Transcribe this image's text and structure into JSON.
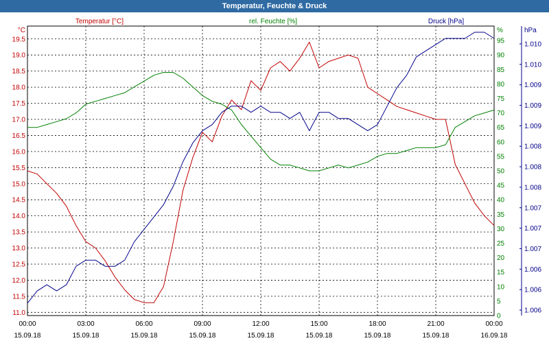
{
  "window": {
    "title": "Temperatur, Feuchte & Druck"
  },
  "colors": {
    "temp": "#c00000",
    "hum": "#008000",
    "press": "#00008b",
    "grid": "#000000"
  },
  "chart_data": {
    "type": "line",
    "title": "Temperatur, Feuchte & Druck",
    "grid": true,
    "x_ticks": [
      {
        "time": "00:00",
        "date": "15.09.18"
      },
      {
        "time": "03:00",
        "date": "15.09.18"
      },
      {
        "time": "06:00",
        "date": "15.09.18"
      },
      {
        "time": "09:00",
        "date": "15.09.18"
      },
      {
        "time": "12:00",
        "date": "15.09.18"
      },
      {
        "time": "15:00",
        "date": "15.09.18"
      },
      {
        "time": "18:00",
        "date": "15.09.18"
      },
      {
        "time": "21:00",
        "date": "15.09.18"
      },
      {
        "time": "00:00",
        "date": "16.09.18"
      }
    ],
    "x_range_hours": [
      0,
      24
    ],
    "axes": {
      "temp": {
        "label": "Temperatur [°C]",
        "unit": "°C",
        "range": [
          10.9,
          19.9
        ],
        "ticks": [
          "19.5",
          "19.0",
          "18.5",
          "18.0",
          "17.5",
          "17.0",
          "16.5",
          "16.0",
          "15.5",
          "15.0",
          "14.5",
          "14.0",
          "13.5",
          "13.0",
          "12.5",
          "12.0",
          "11.5",
          "11.0"
        ]
      },
      "hum": {
        "label": "rel. Feuchte [%]",
        "unit": "%",
        "range": [
          0,
          100
        ],
        "ticks": [
          "95",
          "90",
          "85",
          "80",
          "75",
          "70",
          "65",
          "60",
          "55",
          "50",
          "45",
          "40",
          "35",
          "30",
          "25",
          "20",
          "15",
          "10",
          "5",
          "0"
        ]
      },
      "press": {
        "label": "Druck [hPa]",
        "unit": "hPa",
        "range": [
          1.0058,
          1.0105
        ],
        "ticks": [
          "1.010",
          "1.010",
          "1.009",
          "1.009",
          "1.009",
          "1.008",
          "1.008",
          "1.008",
          "1.007",
          "1.007",
          "1.007",
          "1.006",
          "1.006",
          "1.006"
        ]
      }
    },
    "series": [
      {
        "name": "Temperatur [°C]",
        "axis": "temp",
        "color": "#c00000",
        "x": [
          0,
          0.5,
          1,
          1.5,
          2,
          2.5,
          3,
          3.5,
          4,
          4.5,
          5,
          5.5,
          6,
          6.5,
          7,
          7.5,
          8,
          8.5,
          9,
          9.5,
          10,
          10.5,
          11,
          11.5,
          12,
          12.5,
          13,
          13.5,
          14,
          14.5,
          15,
          15.5,
          16,
          16.5,
          17,
          17.5,
          18,
          18.5,
          19,
          19.5,
          20,
          20.5,
          21,
          21.5,
          22,
          22.5,
          23,
          23.5,
          24
        ],
        "y": [
          15.4,
          15.3,
          15.0,
          14.7,
          14.3,
          13.7,
          13.2,
          13.0,
          12.6,
          12.1,
          11.7,
          11.4,
          11.3,
          11.3,
          11.8,
          13.2,
          14.8,
          15.8,
          16.6,
          16.3,
          17.1,
          17.6,
          17.3,
          18.2,
          17.9,
          18.6,
          18.8,
          18.5,
          18.9,
          19.4,
          18.6,
          18.8,
          18.9,
          19.0,
          18.9,
          18.0,
          17.8,
          17.6,
          17.4,
          17.3,
          17.2,
          17.1,
          17.0,
          17.0,
          15.6,
          15.0,
          14.4,
          14.0,
          13.7
        ]
      },
      {
        "name": "rel. Feuchte [%]",
        "axis": "hum",
        "color": "#008000",
        "x": [
          0,
          0.5,
          1,
          1.5,
          2,
          2.5,
          3,
          3.5,
          4,
          4.5,
          5,
          5.5,
          6,
          6.5,
          7,
          7.5,
          8,
          8.5,
          9,
          9.5,
          10,
          10.5,
          11,
          11.5,
          12,
          12.5,
          13,
          13.5,
          14,
          14.5,
          15,
          15.5,
          16,
          16.5,
          17,
          17.5,
          18,
          18.5,
          19,
          19.5,
          20,
          20.5,
          21,
          21.5,
          22,
          22.5,
          23,
          23.5,
          24
        ],
        "y": [
          65,
          65,
          66,
          67,
          68,
          70,
          73,
          74,
          75,
          76,
          77,
          79,
          81,
          83,
          84,
          84,
          82,
          79,
          76,
          74,
          73,
          71,
          66,
          62,
          58,
          54,
          52,
          52,
          51,
          50,
          50,
          51,
          52,
          51,
          52,
          53,
          55,
          56,
          56,
          57,
          58,
          58,
          58,
          59,
          65,
          67,
          69,
          70,
          71
        ]
      },
      {
        "name": "Druck [hPa]",
        "axis": "press",
        "color": "#00008b",
        "x": [
          0,
          0.5,
          1,
          1.5,
          2,
          2.5,
          3,
          3.5,
          4,
          4.5,
          5,
          5.5,
          6,
          6.5,
          7,
          7.5,
          8,
          8.5,
          9,
          9.5,
          10,
          10.5,
          11,
          11.5,
          12,
          12.5,
          13,
          13.5,
          14,
          14.5,
          15,
          15.5,
          16,
          16.5,
          17,
          17.5,
          18,
          18.5,
          19,
          19.5,
          20,
          20.5,
          21,
          21.5,
          22,
          22.5,
          23,
          23.5,
          24
        ],
        "y": [
          1.006,
          1.0062,
          1.0063,
          1.0062,
          1.0063,
          1.0066,
          1.0067,
          1.0067,
          1.0066,
          1.0066,
          1.0067,
          1.007,
          1.0072,
          1.0074,
          1.0076,
          1.0079,
          1.0083,
          1.0086,
          1.0088,
          1.0089,
          1.0091,
          1.0092,
          1.0092,
          1.0091,
          1.0092,
          1.0091,
          1.0091,
          1.009,
          1.0091,
          1.0088,
          1.0091,
          1.0091,
          1.009,
          1.009,
          1.0089,
          1.0088,
          1.0089,
          1.0092,
          1.0095,
          1.0097,
          1.01,
          1.0101,
          1.0102,
          1.0103,
          1.0103,
          1.0103,
          1.0104,
          1.0104,
          1.0103
        ]
      }
    ]
  }
}
